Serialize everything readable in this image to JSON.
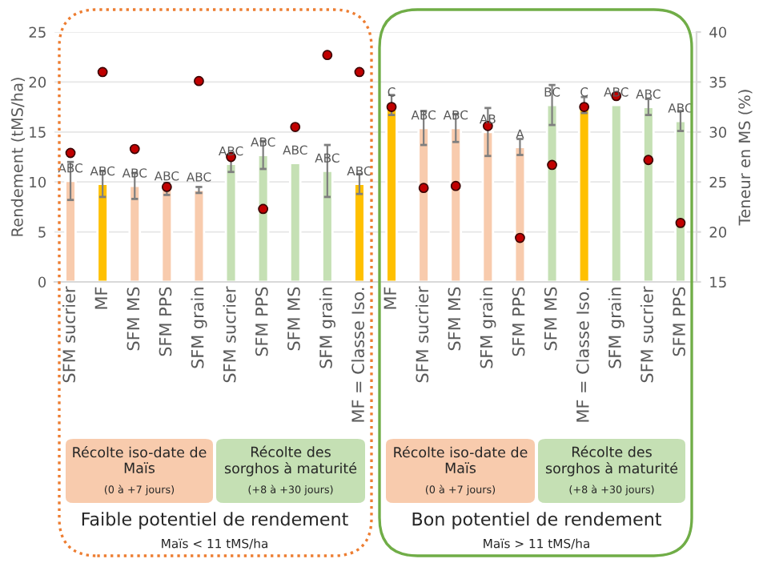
{
  "chart_data": {
    "type": "bar",
    "ylabel": "Rendement (tMS/ha)",
    "y2label": "Teneur en MS (%)",
    "categories": [
      "SFM sucrier",
      "MF",
      "SFM MS",
      "SFM PPS",
      "SFM grain",
      "SFM sucrier",
      "SFM PPS",
      "SFM MS",
      "SFM grain",
      "MF = Classe Iso.",
      "MF",
      "SFM sucrier",
      "SFM MS",
      "SFM grain",
      "SFM PPS",
      "SFM MS",
      "MF = Classe Iso.",
      "SFM grain",
      "SFM sucrier",
      "SFM PPS"
    ],
    "ylim": [
      0,
      25
    ],
    "yticks": [
      0,
      5,
      10,
      15,
      20,
      25
    ],
    "y2lim": [
      15,
      40
    ],
    "y2ticks": [
      15,
      20,
      25,
      30,
      35,
      40
    ],
    "grid": "y",
    "legend": false,
    "series": [
      {
        "values": [
          10.1,
          9.8,
          9.6,
          9.3,
          9.2,
          11.8,
          12.7,
          11.9,
          11.1,
          9.8,
          17.7,
          15.4,
          15.4,
          15.0,
          13.5,
          17.7,
          17.7,
          17.7,
          17.5,
          16.1
        ],
        "colors": [
          "#f8cbad",
          "#ffc000",
          "#f8cbad",
          "#f8cbad",
          "#f8cbad",
          "#c5e0b4",
          "#c5e0b4",
          "#c5e0b4",
          "#c5e0b4",
          "#ffc000",
          "#ffc000",
          "#f8cbad",
          "#f8cbad",
          "#f8cbad",
          "#f8cbad",
          "#c5e0b4",
          "#ffc000",
          "#c5e0b4",
          "#c5e0b4",
          "#c5e0b4"
        ],
        "errors": [
          1.9,
          1.3,
          1.3,
          0.6,
          0.3,
          0.8,
          1.4,
          null,
          2.6,
          1.0,
          1.0,
          1.7,
          1.4,
          2.4,
          0.8,
          2.0,
          0.8,
          null,
          0.8,
          1.0
        ],
        "value_labels": [
          "ABC",
          "ABC",
          "ABC",
          "ABC",
          "ABC",
          "ABC",
          "ABC",
          "ABC",
          "ABC",
          "ABC",
          "C",
          "ABC",
          "ABC",
          "AB",
          "A",
          "BC",
          "C",
          "ABC",
          "ABC",
          "ABC"
        ]
      },
      {
        "type": "scatter",
        "axis": "y2",
        "color": "#c00000",
        "marker": "circle",
        "values": [
          27.9,
          36.0,
          28.3,
          24.5,
          35.1,
          27.5,
          22.3,
          30.5,
          37.7,
          36.0,
          32.5,
          24.4,
          24.6,
          30.6,
          19.4,
          26.7,
          32.5,
          33.6,
          27.2,
          20.9
        ]
      }
    ],
    "annotations": [
      "Récolte iso-date de\nMaïs",
      "(0 à +7 jours)",
      "Récolte des\nsorghos à maturité",
      "(+8 à +30 jours)",
      "Récolte iso-date de\nMaïs",
      "(0 à +7 jours)",
      "Récolte des\nsorghos à maturité",
      "(+8 à +30 jours)",
      "Faible potentiel de rendement",
      "Maïs < 11 tMS/ha",
      "Bon potentiel de rendement",
      "Maïs > 11 tMS/ha"
    ]
  }
}
